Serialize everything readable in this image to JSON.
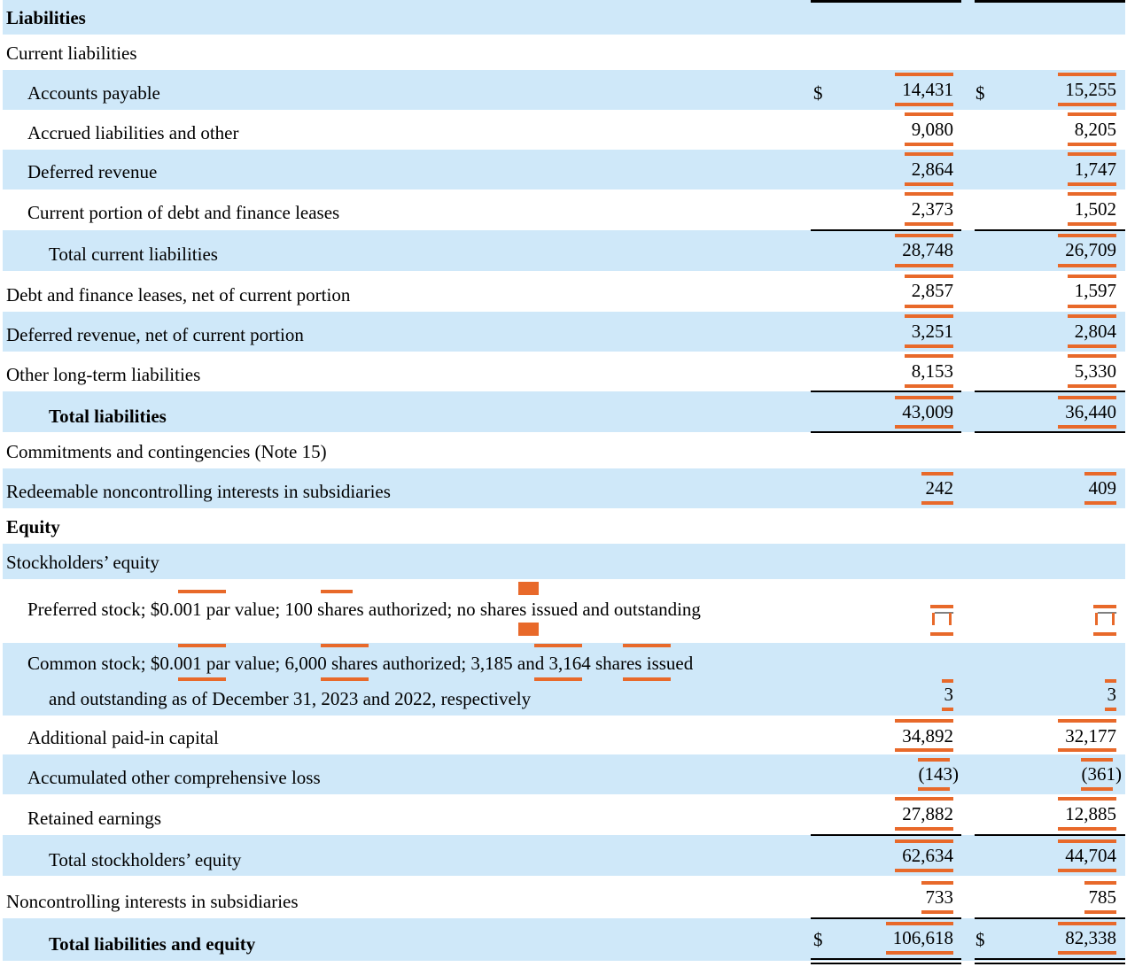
{
  "headings": {
    "liabilities": "Liabilities",
    "current_liabilities": "Current liabilities",
    "commitments": "Commitments and contingencies (Note 15)",
    "equity": "Equity",
    "stockholders_equity": "Stockholders’ equity"
  },
  "currency": "$",
  "rows": {
    "accounts_payable": {
      "label": "Accounts payable",
      "v2023": "14,431",
      "v2022": "15,255"
    },
    "accrued": {
      "label": "Accrued liabilities and other",
      "v2023": "9,080",
      "v2022": "8,205"
    },
    "deferred_revenue": {
      "label": "Deferred revenue",
      "v2023": "2,864",
      "v2022": "1,747"
    },
    "current_debt": {
      "label": "Current portion of debt and finance leases",
      "v2023": "2,373",
      "v2022": "1,502"
    },
    "total_current": {
      "label": "Total current liabilities",
      "v2023": "28,748",
      "v2022": "26,709"
    },
    "debt_noncurrent": {
      "label": "Debt and finance leases, net of current portion",
      "v2023": "2,857",
      "v2022": "1,597"
    },
    "deferred_noncurrent": {
      "label": "Deferred revenue, net of current portion",
      "v2023": "3,251",
      "v2022": "2,804"
    },
    "other_lt": {
      "label": "Other long-term liabilities",
      "v2023": "8,153",
      "v2022": "5,330"
    },
    "total_liabilities": {
      "label": "Total liabilities",
      "v2023": "43,009",
      "v2022": "36,440"
    },
    "redeemable_nci": {
      "label": "Redeemable noncontrolling interests in subsidiaries",
      "v2023": "242",
      "v2022": "409"
    },
    "preferred": {
      "p1": "Preferred stock; ",
      "par": "$0.001",
      "p2": " par value; ",
      "auth": "100",
      "p3": " shares authorized; ",
      "issued": "no",
      "p4": " shares issued and outstanding",
      "v2023": "—",
      "v2022": "—"
    },
    "common": {
      "p1": "Common stock; ",
      "par": "$0.001",
      "p2": " par value; ",
      "auth": "6,000",
      "p3": " shares authorized; ",
      "s2023": "3,185",
      "p4": " and ",
      "s2022": "3,164",
      "p5": " shares issued",
      "line2": "and outstanding as of December 31, 2023 and 2022, respectively",
      "v2023": "3",
      "v2022": "3"
    },
    "apic": {
      "label": "Additional paid-in capital",
      "v2023": "34,892",
      "v2022": "32,177"
    },
    "aoci": {
      "label": "Accumulated other comprehensive loss",
      "v2023": "(143)",
      "v2022": "(361)"
    },
    "retained": {
      "label": "Retained earnings",
      "v2023": "27,882",
      "v2022": "12,885"
    },
    "total_se": {
      "label": "Total stockholders’ equity",
      "v2023": "62,634",
      "v2022": "44,704"
    },
    "nci": {
      "label": "Noncontrolling interests in subsidiaries",
      "v2023": "733",
      "v2022": "785"
    },
    "total_le": {
      "label": "Total liabilities and equity",
      "v2023": "106,618",
      "v2022": "82,338"
    }
  },
  "colors": {
    "row_shade": "#cfe8f9",
    "highlight": "#e8692a"
  }
}
